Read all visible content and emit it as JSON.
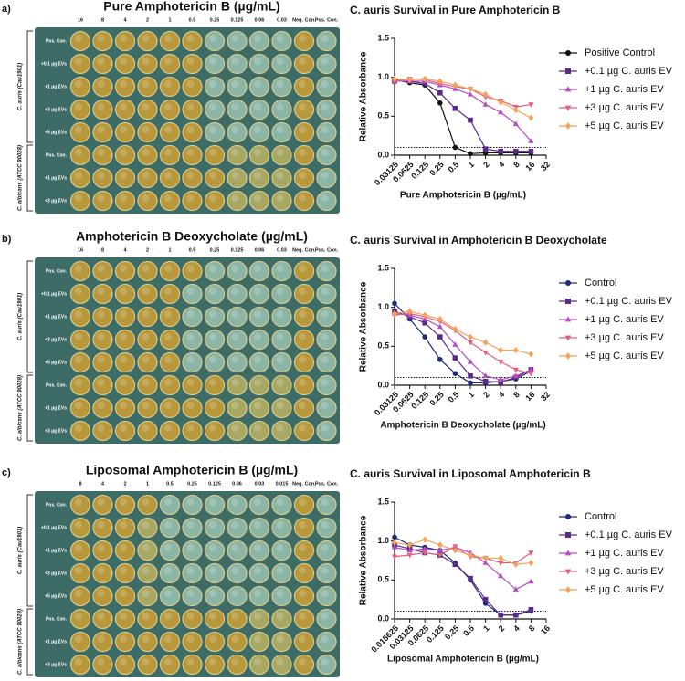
{
  "panels": [
    {
      "letter": "a)",
      "plate": {
        "title": "Pure Amphotericin B (µg/mL)",
        "columns": [
          "16",
          "8",
          "4",
          "2",
          "1",
          "0.5",
          "0.25",
          "0.125",
          "0.06",
          "0.03",
          "Neg. Con.",
          "Pos. Con."
        ],
        "groups": [
          {
            "label": "C. auris (Cau1901)",
            "rows": [
              "Pos. Con.",
              "+0.1 µg EVs",
              "+1 µg EVs",
              "+3 µg EVs",
              "+5 µg EVs"
            ]
          },
          {
            "label": "C. albicans (ATCC 90028)",
            "rows": [
              "Pos. Con.",
              "+1 µg EVs",
              "+3 µg EVs"
            ]
          }
        ]
      }
    },
    {
      "letter": "b)",
      "plate": {
        "title": "Amphotericin B Deoxycholate (µg/mL)",
        "columns": [
          "16",
          "8",
          "4",
          "2",
          "1",
          "0.5",
          "0.25",
          "0.125",
          "0.06",
          "0.03",
          "Neg. Con.",
          "Pos. Con."
        ],
        "groups": [
          {
            "label": "C. auris (Cau1901)",
            "rows": [
              "Pos. Con.",
              "+0.1 µg EVs",
              "+1 µg EVs",
              "+3 µg EVs",
              "+5 µg EVs"
            ]
          },
          {
            "label": "C. albicans (ATCC 90028)",
            "rows": [
              "Pos. Con.",
              "+1 µg EVs",
              "+3 µg EVs"
            ]
          }
        ]
      }
    },
    {
      "letter": "c)",
      "plate": {
        "title": "Liposomal Amphotericin B (µg/mL)",
        "columns": [
          "8",
          "4",
          "2",
          "1",
          "0.5",
          "0.25",
          "0.125",
          "0.06",
          "0.03",
          "0.015",
          "Neg. Con.",
          "Pos. Con."
        ],
        "groups": [
          {
            "label": "C. auris (Cau1901)",
            "rows": [
              "Pos. Con.",
              "+0.1 µg EVs",
              "+1 µg EVs",
              "+3 µg EVs",
              "+5 µg EVs"
            ]
          },
          {
            "label": "C. albicans (ATCC 90028)",
            "rows": [
              "Pos. Con.",
              "+1 µg EVs",
              "+3 µg EVs"
            ]
          }
        ]
      }
    }
  ],
  "chart_data": [
    {
      "type": "line",
      "title": "C. auris Survival in Pure Amphotericin B",
      "x_label": "Pure Amphotericin B (µg/mL)",
      "y_label": "Relative Absorbance",
      "xscale": "log",
      "xlim": [
        0.03125,
        32
      ],
      "xticks": [
        0.03125,
        0.0625,
        0.125,
        0.25,
        0.5,
        1,
        2,
        4,
        8,
        16,
        32
      ],
      "ylim": [
        0,
        1.5
      ],
      "yticks": [
        {
          "value": 0,
          "label": "0.0"
        },
        {
          "value": 0.5,
          "label": "0.5"
        },
        {
          "value": 1,
          "label": "1.0"
        },
        {
          "value": 1.5,
          "label": "1.5"
        }
      ],
      "hline": 0.1,
      "x": [
        0.03125,
        0.0625,
        0.125,
        0.25,
        0.5,
        1,
        2,
        4,
        8,
        16
      ],
      "series": [
        {
          "name": "Positive Control",
          "color": "#111111",
          "marker": "circle",
          "values": [
            0.97,
            0.93,
            0.9,
            0.67,
            0.1,
            0.02,
            0.03,
            0.03,
            0.03,
            0.03
          ]
        },
        {
          "name": "+0.1 µg C. auris EV",
          "color": "#5a2a8a",
          "marker": "square",
          "values": [
            0.95,
            0.95,
            0.92,
            0.8,
            0.6,
            0.45,
            0.08,
            0.05,
            0.05,
            0.05
          ]
        },
        {
          "name": "+1 µg C. auris EV",
          "color": "#b44cc4",
          "marker": "triangle",
          "values": [
            0.95,
            0.95,
            0.95,
            0.9,
            0.85,
            0.78,
            0.65,
            0.55,
            0.4,
            0.18
          ]
        },
        {
          "name": "+3 µg C. auris EV",
          "color": "#e0607e",
          "marker": "triangle-down",
          "values": [
            0.95,
            0.98,
            0.97,
            0.92,
            0.88,
            0.85,
            0.75,
            0.7,
            0.62,
            0.65
          ]
        },
        {
          "name": "+5 µg C. auris EV",
          "color": "#f5a25a",
          "marker": "diamond",
          "values": [
            0.98,
            0.97,
            0.98,
            0.95,
            0.9,
            0.85,
            0.78,
            0.68,
            0.58,
            0.48
          ]
        }
      ]
    },
    {
      "type": "line",
      "title": "C. auris Survival in Amphotericin B Deoxycholate",
      "x_label": "Amphotericin B Deoxycholate (µg/mL)",
      "y_label": "Relative Absorbance",
      "xscale": "log",
      "xlim": [
        0.03125,
        32
      ],
      "xticks": [
        0.03125,
        0.0625,
        0.125,
        0.25,
        0.5,
        1,
        2,
        4,
        8,
        16,
        32
      ],
      "ylim": [
        0,
        1.5
      ],
      "yticks": [
        {
          "value": 0,
          "label": "0.0"
        },
        {
          "value": 0.5,
          "label": "0.5"
        },
        {
          "value": 1,
          "label": "1.0"
        },
        {
          "value": 1.5,
          "label": "1.5"
        }
      ],
      "hline": 0.1,
      "x": [
        0.03125,
        0.0625,
        0.125,
        0.25,
        0.5,
        1,
        2,
        4,
        8,
        16
      ],
      "series": [
        {
          "name": "Control",
          "color": "#1f2a78",
          "marker": "circle",
          "values": [
            1.05,
            0.85,
            0.62,
            0.33,
            0.15,
            0.03,
            0.03,
            0.05,
            0.08,
            0.18
          ]
        },
        {
          "name": "+0.1 µg C. auris EV",
          "color": "#5a2a8a",
          "marker": "square",
          "values": [
            0.95,
            0.88,
            0.8,
            0.62,
            0.35,
            0.12,
            0.05,
            0.04,
            0.1,
            0.2
          ]
        },
        {
          "name": "+1 µg C. auris EV",
          "color": "#b44cc4",
          "marker": "triangle",
          "values": [
            0.92,
            0.9,
            0.85,
            0.75,
            0.52,
            0.3,
            0.12,
            0.07,
            0.12,
            0.2
          ]
        },
        {
          "name": "+3 µg C. auris EV",
          "color": "#e0607e",
          "marker": "triangle-down",
          "values": [
            0.9,
            0.92,
            0.88,
            0.82,
            0.7,
            0.55,
            0.42,
            0.3,
            0.2,
            0.15
          ]
        },
        {
          "name": "+5 µg C. auris EV",
          "color": "#f5a25a",
          "marker": "diamond",
          "values": [
            0.92,
            0.95,
            0.9,
            0.85,
            0.72,
            0.62,
            0.55,
            0.45,
            0.45,
            0.4
          ]
        }
      ]
    },
    {
      "type": "line",
      "title": "C. auris Survival in Liposomal Amphotericin B",
      "x_label": "Liposomal Amphotericin B (µg/mL)",
      "y_label": "Relative Absorbance",
      "xscale": "log",
      "xlim": [
        0.015625,
        16
      ],
      "xticks": [
        0.015625,
        0.03125,
        0.0625,
        0.125,
        0.25,
        0.5,
        1,
        2,
        4,
        8,
        16
      ],
      "ylim": [
        0,
        1.5
      ],
      "yticks": [
        {
          "value": 0,
          "label": "0.0"
        },
        {
          "value": 0.5,
          "label": "0.5"
        },
        {
          "value": 1,
          "label": "1.0"
        },
        {
          "value": 1.5,
          "label": "1.5"
        }
      ],
      "hline": 0.1,
      "x": [
        0.015625,
        0.03125,
        0.0625,
        0.125,
        0.25,
        0.5,
        1,
        2,
        4,
        8
      ],
      "series": [
        {
          "name": "Control",
          "color": "#1f2a78",
          "marker": "circle",
          "values": [
            1.05,
            0.95,
            0.92,
            0.88,
            0.72,
            0.5,
            0.2,
            0.05,
            0.05,
            0.1
          ]
        },
        {
          "name": "+0.1 µg C. auris EV",
          "color": "#5a2a8a",
          "marker": "square",
          "values": [
            0.95,
            0.9,
            0.85,
            0.82,
            0.7,
            0.52,
            0.25,
            0.05,
            0.05,
            0.12
          ]
        },
        {
          "name": "+1 µg C. auris EV",
          "color": "#b44cc4",
          "marker": "triangle",
          "values": [
            0.92,
            0.88,
            0.9,
            0.88,
            0.92,
            0.85,
            0.72,
            0.55,
            0.38,
            0.48
          ]
        },
        {
          "name": "+3 µg C. auris EV",
          "color": "#e0607e",
          "marker": "triangle-down",
          "values": [
            0.8,
            0.82,
            0.85,
            0.82,
            0.93,
            0.8,
            0.78,
            0.72,
            0.72,
            0.85
          ]
        },
        {
          "name": "+5 µg C. auris EV",
          "color": "#f5a25a",
          "marker": "diamond",
          "values": [
            0.98,
            0.95,
            1.02,
            0.95,
            0.88,
            0.82,
            0.78,
            0.78,
            0.7,
            0.72
          ]
        }
      ]
    }
  ]
}
